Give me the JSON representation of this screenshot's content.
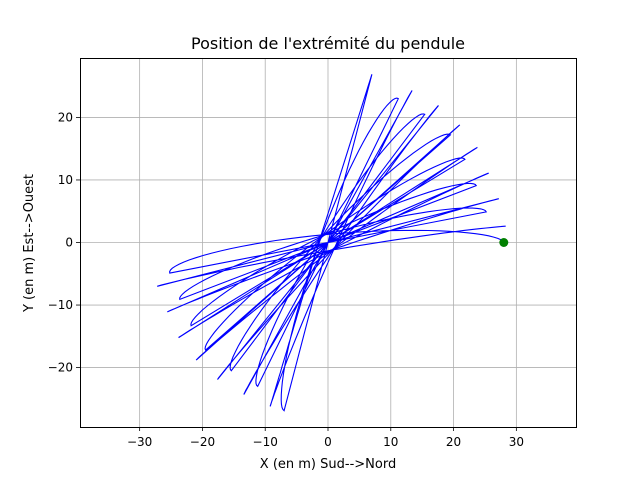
{
  "chart_data": {
    "type": "line",
    "title": "Position de l'extrémité du pendule",
    "xlabel": "X (en m) Sud-->Nord",
    "ylabel": "Y (en m) Est-->Ouest",
    "xlim": [
      -39.5,
      39.5
    ],
    "ylim": [
      -29.5,
      29.5
    ],
    "xticks": [
      -30,
      -20,
      -10,
      0,
      10,
      20,
      30
    ],
    "yticks": [
      -20,
      -10,
      0,
      10,
      20
    ],
    "grid": true,
    "trajectory": {
      "color": "#0000ff",
      "amplitude": 28,
      "lobe_count": 10,
      "lobe_ends": [
        [
          28.0,
          0.0
        ],
        [
          25.2,
          4.9
        ],
        [
          23.6,
          9.1
        ],
        [
          21.8,
          13.3
        ],
        [
          19.5,
          17.2
        ],
        [
          15.4,
          20.5
        ],
        [
          11.2,
          23.0
        ],
        [
          7.0,
          26.9
        ],
        [
          -1.3,
          0.5
        ],
        [
          -9.2,
          -26.2
        ],
        [
          -13.4,
          -24.3
        ],
        [
          -17.6,
          -21.9
        ],
        [
          -21.0,
          -18.8
        ],
        [
          -23.8,
          -15.2
        ],
        [
          -25.6,
          -11.1
        ],
        [
          -27.2,
          -7.0
        ],
        [
          -28.3,
          -2.6
        ]
      ]
    },
    "start_point": {
      "x": 28,
      "y": 0,
      "color": "#008000"
    }
  }
}
